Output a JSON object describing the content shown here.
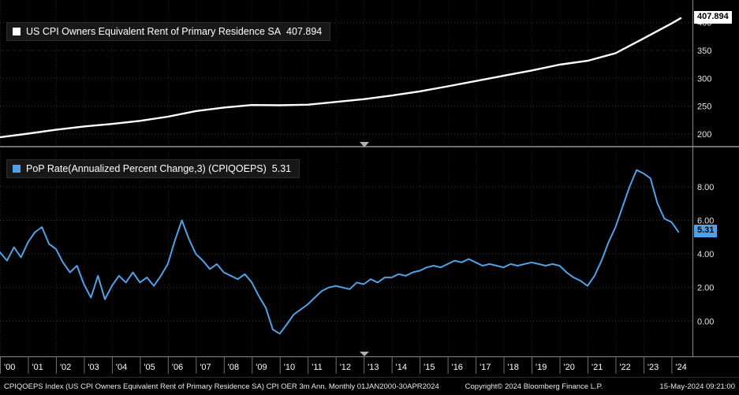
{
  "colors": {
    "background": "#000000",
    "top_line": "#ffffff",
    "bottom_line": "#4fa1e8",
    "grid": "#3a3a3a",
    "axis": "#8a8a8a"
  },
  "top_panel": {
    "legend_label": "US CPI Owners Equivalent Rent of Primary Residence SA",
    "legend_value": "407.894",
    "last_label": "407.894"
  },
  "bottom_panel": {
    "legend_label": "PoP Rate(Annualized Percent Change,3) (CPIQOEPS)",
    "legend_value": "5.31",
    "last_label": "5.31"
  },
  "x_axis": {
    "xlim": [
      2000,
      2024.75
    ],
    "year_labels": [
      "'00",
      "'01",
      "'02",
      "'03",
      "'04",
      "'05",
      "'06",
      "'07",
      "'08",
      "'09",
      "'10",
      "'11",
      "'12",
      "'13",
      "'14",
      "'15",
      "'16",
      "'17",
      "'18",
      "'19",
      "'20",
      "'21",
      "'22",
      "'23",
      "'24"
    ]
  },
  "footer": {
    "description": "CPIQOEPS Index (US CPI Owners Equivalent Rent of Primary Residence SA) CPI OER 3m Ann.  Monthly 01JAN2000-30APR2024",
    "copyright": "Copyright© 2024 Bloomberg Finance L.P.",
    "timestamp": "15-May-2024 09:21:00"
  },
  "chart_data": [
    {
      "type": "line",
      "name": "US CPI Owners Equivalent Rent of Primary Residence SA",
      "color": "#ffffff",
      "ylim": [
        180,
        435
      ],
      "yticks": [
        {
          "v": 200,
          "label": "200"
        },
        {
          "v": 250,
          "label": "250"
        },
        {
          "v": 300,
          "label": "300"
        },
        {
          "v": 350,
          "label": "350"
        },
        {
          "v": 400,
          "label": "400"
        }
      ],
      "x": [
        2000,
        2001,
        2002,
        2003,
        2004,
        2005,
        2006,
        2007,
        2008,
        2009,
        2010,
        2011,
        2012,
        2013,
        2014,
        2015,
        2016,
        2017,
        2018,
        2019,
        2020,
        2021,
        2022,
        2023,
        2024,
        2024.33
      ],
      "values": [
        194,
        200.5,
        207.5,
        213.5,
        218,
        223.5,
        231,
        241,
        247.5,
        252,
        251.5,
        252.5,
        257.5,
        262.5,
        269,
        276.5,
        285.5,
        295,
        304.5,
        314,
        324.5,
        331.5,
        345,
        371.5,
        398.5,
        407.894
      ],
      "last_value": 407.894
    },
    {
      "type": "line",
      "name": "PoP Rate(Annualized Percent Change,3) (CPIQOEPS)",
      "color": "#4fa1e8",
      "ylim": [
        -2.1,
        10.3
      ],
      "yticks": [
        {
          "v": 0,
          "label": "0.00"
        },
        {
          "v": 2,
          "label": "2.00"
        },
        {
          "v": 4,
          "label": "4.00"
        },
        {
          "v": 6,
          "label": "6.00"
        },
        {
          "v": 8,
          "label": "8.00"
        }
      ],
      "x_start": 2000,
      "x_step": 0.25,
      "values": [
        4.1,
        3.6,
        4.4,
        3.8,
        4.7,
        5.3,
        5.6,
        4.6,
        4.3,
        3.5,
        2.9,
        3.3,
        2.2,
        1.4,
        2.7,
        1.3,
        2.1,
        2.7,
        2.3,
        2.9,
        2.3,
        2.6,
        2.1,
        2.7,
        3.4,
        4.8,
        6.0,
        4.9,
        4.0,
        3.6,
        3.1,
        3.4,
        2.9,
        2.7,
        2.5,
        2.8,
        2.3,
        1.5,
        0.8,
        -0.5,
        -0.75,
        -0.2,
        0.4,
        0.7,
        1.0,
        1.4,
        1.8,
        2.0,
        2.1,
        2.0,
        1.9,
        2.3,
        2.2,
        2.5,
        2.3,
        2.6,
        2.6,
        2.8,
        2.7,
        2.9,
        3.0,
        3.2,
        3.3,
        3.2,
        3.4,
        3.6,
        3.5,
        3.7,
        3.5,
        3.3,
        3.4,
        3.3,
        3.2,
        3.4,
        3.3,
        3.4,
        3.5,
        3.4,
        3.3,
        3.4,
        3.3,
        2.9,
        2.6,
        2.4,
        2.1,
        2.7,
        3.6,
        4.7,
        5.6,
        6.8,
        8.0,
        9.0,
        8.8,
        8.5,
        7.0,
        6.1,
        5.9,
        5.31
      ],
      "last_value": 5.31
    }
  ]
}
